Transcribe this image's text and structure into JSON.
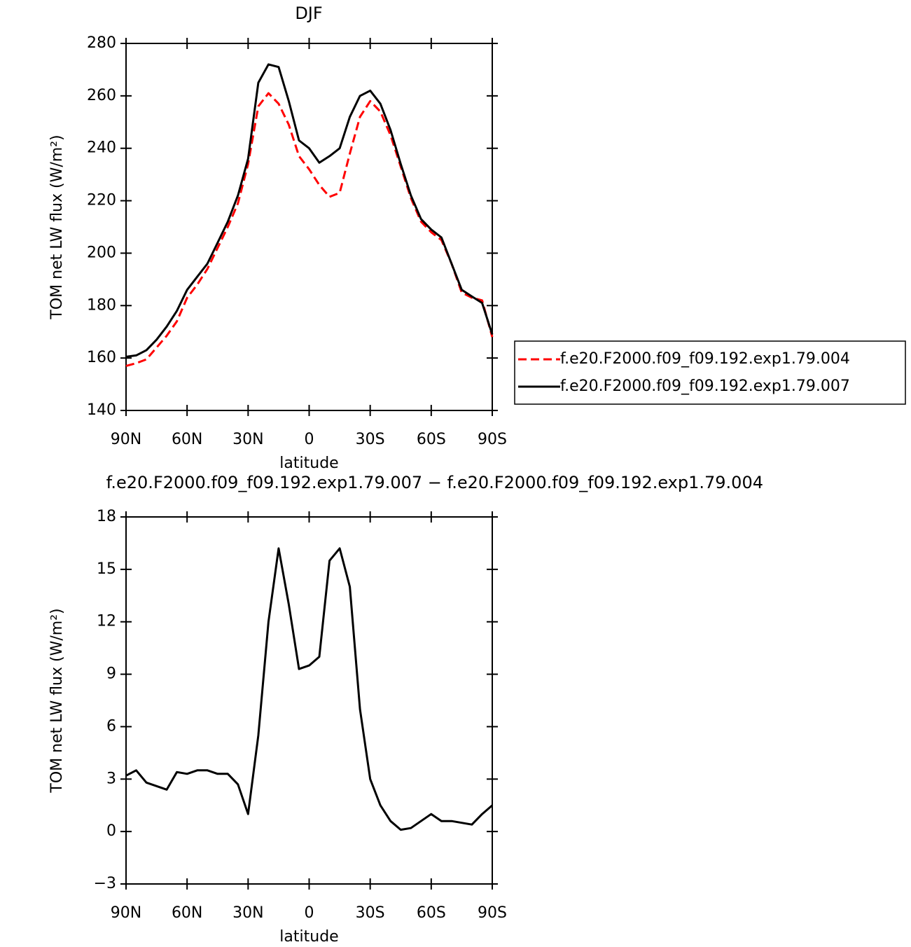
{
  "chart_data": [
    {
      "type": "line",
      "title": "DJF",
      "xlabel": "latitude",
      "ylabel": "TOM net LW flux (W/m²)",
      "x": [
        90,
        85,
        80,
        75,
        70,
        65,
        60,
        55,
        50,
        45,
        40,
        35,
        30,
        25,
        20,
        15,
        10,
        5,
        0,
        -5,
        -10,
        -15,
        -20,
        -25,
        -30,
        -35,
        -40,
        -45,
        -50,
        -55,
        -60,
        -65,
        -70,
        -75,
        -80,
        -85,
        -90
      ],
      "series": [
        {
          "name": "f.e20.F2000.f09_f09.192.exp1.79.004",
          "color": "#ff0000",
          "linestyle": "dashed",
          "values": [
            157,
            158,
            159.5,
            164,
            168.5,
            174,
            183,
            188,
            194,
            202,
            210,
            219,
            234,
            256,
            261,
            257,
            249,
            237,
            232,
            226,
            221.5,
            223,
            238,
            252,
            258,
            254,
            245,
            233,
            221,
            212,
            208,
            205,
            196,
            185,
            183,
            182,
            168
          ]
        },
        {
          "name": "f.e20.F2000.f09_f09.192.exp1.79.007",
          "color": "#000000",
          "linestyle": "solid",
          "values": [
            160.5,
            161,
            163,
            167,
            172,
            178,
            186,
            191,
            196,
            204,
            212,
            222,
            236,
            265,
            272,
            271,
            258,
            243,
            240,
            234.5,
            237,
            240,
            252,
            260,
            262,
            257,
            247,
            234,
            222,
            213,
            209,
            206,
            196,
            186,
            183.5,
            181,
            169
          ]
        }
      ],
      "xlim": [
        90,
        -90
      ],
      "ylim": [
        140,
        280
      ],
      "xticks": [
        {
          "value": 90,
          "label": "90N"
        },
        {
          "value": 60,
          "label": "60N"
        },
        {
          "value": 30,
          "label": "30N"
        },
        0,
        {
          "value": -30,
          "label": "30S"
        },
        {
          "value": -60,
          "label": "60S"
        },
        {
          "value": -90,
          "label": "90S"
        }
      ],
      "yticks": [
        140,
        160,
        180,
        200,
        220,
        240,
        260,
        280
      ],
      "legend": "right"
    },
    {
      "type": "line",
      "title": "f.e20.F2000.f09_f09.192.exp1.79.007 − f.e20.F2000.f09_f09.192.exp1.79.004",
      "xlabel": "latitude",
      "ylabel": "TOM net LW flux (W/m²)",
      "x": [
        90,
        85,
        80,
        75,
        70,
        65,
        60,
        55,
        50,
        45,
        40,
        35,
        30,
        25,
        20,
        15,
        10,
        5,
        0,
        -5,
        -10,
        -15,
        -20,
        -25,
        -30,
        -35,
        -40,
        -45,
        -50,
        -55,
        -60,
        -65,
        -70,
        -75,
        -80,
        -85,
        -90
      ],
      "series": [
        {
          "color": "#000000",
          "linestyle": "solid",
          "values": [
            3.2,
            3.5,
            2.8,
            2.6,
            2.4,
            3.4,
            3.3,
            3.5,
            3.5,
            3.3,
            3.3,
            2.7,
            1.0,
            5.5,
            12,
            16.2,
            13,
            9.3,
            9.5,
            10,
            15.5,
            16.2,
            14,
            7,
            3,
            1.5,
            0.6,
            0.1,
            0.2,
            0.6,
            1.0,
            0.6,
            0.6,
            0.5,
            0.4,
            1.0,
            1.5
          ]
        }
      ],
      "xlim": [
        90,
        -90
      ],
      "ylim": [
        -3,
        18
      ],
      "xticks": [
        {
          "value": 90,
          "label": "90N"
        },
        {
          "value": 60,
          "label": "60N"
        },
        {
          "value": 30,
          "label": "30N"
        },
        0,
        {
          "value": -30,
          "label": "30S"
        },
        {
          "value": -60,
          "label": "60S"
        },
        {
          "value": -90,
          "label": "90S"
        }
      ],
      "yticks": [
        {
          "value": -3,
          "label": "−3"
        },
        0,
        3,
        6,
        9,
        12,
        15,
        18
      ]
    }
  ]
}
